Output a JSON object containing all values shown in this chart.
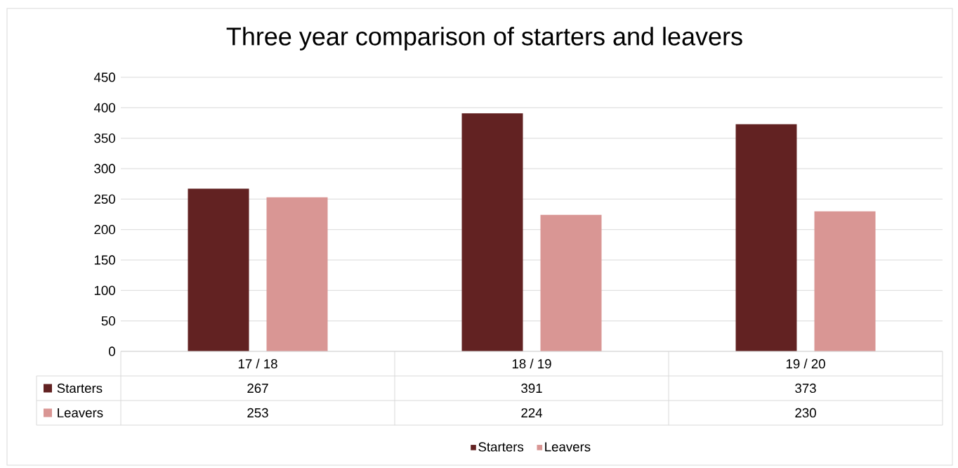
{
  "chart_data": {
    "type": "bar",
    "title": "Three year comparison of starters and leavers",
    "categories": [
      "17 / 18",
      "18 / 19",
      "19 / 20"
    ],
    "series": [
      {
        "name": "Starters",
        "color": "#622222",
        "values": [
          267,
          391,
          373
        ]
      },
      {
        "name": "Leavers",
        "color": "#d99694",
        "values": [
          253,
          224,
          230
        ]
      }
    ],
    "ylim": [
      0,
      450
    ],
    "yticks": [
      0,
      50,
      100,
      150,
      200,
      250,
      300,
      350,
      400,
      450
    ],
    "grid": "y",
    "legend": "bottom",
    "data_labels": true
  }
}
